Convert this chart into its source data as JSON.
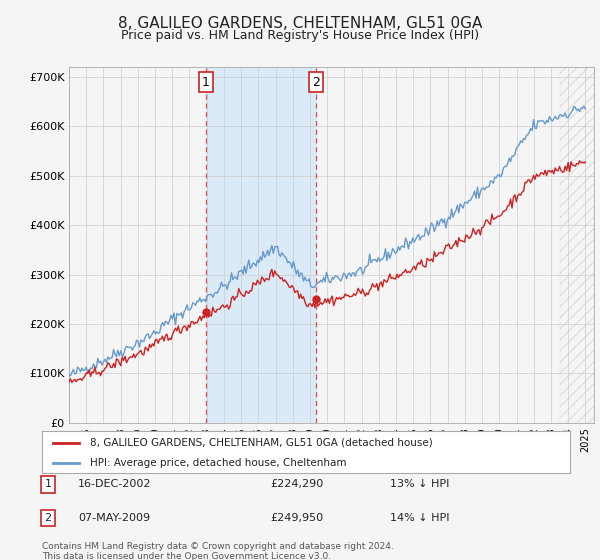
{
  "title": "8, GALILEO GARDENS, CHELTENHAM, GL51 0GA",
  "subtitle": "Price paid vs. HM Land Registry's House Price Index (HPI)",
  "ylim": [
    0,
    720000
  ],
  "yticks": [
    0,
    100000,
    200000,
    300000,
    400000,
    500000,
    600000,
    700000
  ],
  "ytick_labels": [
    "£0",
    "£100K",
    "£200K",
    "£300K",
    "£400K",
    "£500K",
    "£600K",
    "£700K"
  ],
  "background_color": "#f5f5f5",
  "plot_bg_color": "#f5f5f5",
  "grid_color": "#cccccc",
  "purchase1": {
    "date_label": "16-DEC-2002",
    "price": 224290,
    "year": 2002.96,
    "label": "1",
    "hpi_diff": "13% ↓ HPI"
  },
  "purchase2": {
    "date_label": "07-MAY-2009",
    "price": 249950,
    "year": 2009.35,
    "label": "2",
    "hpi_diff": "14% ↓ HPI"
  },
  "highlight_color": "#cce0f5",
  "dashed_line_color": "#e05050",
  "legend_label_red": "8, GALILEO GARDENS, CHELTENHAM, GL51 0GA (detached house)",
  "legend_label_blue": "HPI: Average price, detached house, Cheltenham",
  "footer": "Contains HM Land Registry data © Crown copyright and database right 2024.\nThis data is licensed under the Open Government Licence v3.0.",
  "hpi_color": "#6699cc",
  "price_color": "#cc2222",
  "xlim_start": 1995,
  "xlim_end": 2025.5
}
